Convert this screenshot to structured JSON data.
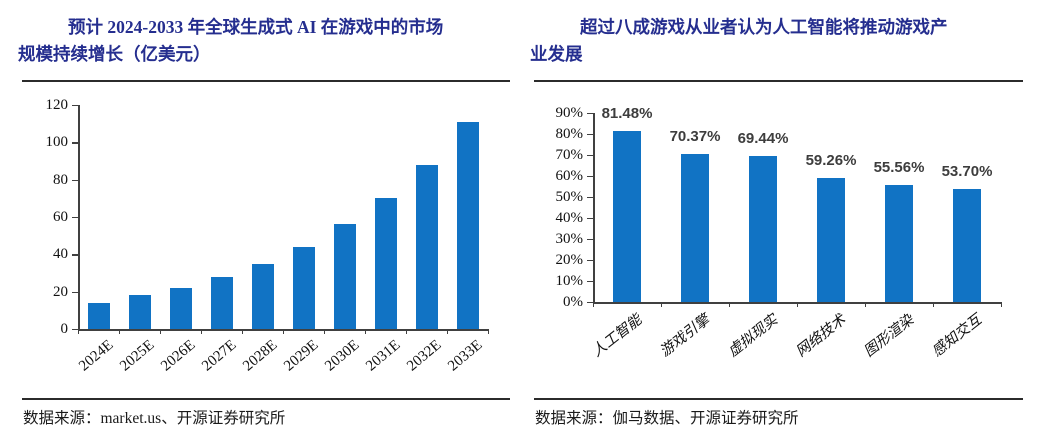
{
  "figures": [
    {
      "title_lines": [
        "预计 2024-2033 年全球生成式 AI 在游戏中的市场",
        "规模持续增长（亿美元）"
      ],
      "source": "数据来源：market.us、开源证券研究所"
    },
    {
      "title_lines": [
        "超过八成游戏从业者认为人工智能将推动游戏产",
        "业发展"
      ],
      "source": "数据来源：伽马数据、开源证券研究所"
    }
  ],
  "chart_data": [
    {
      "type": "bar",
      "title": "预计 2024-2033 年全球生成式 AI 在游戏中的市场规模持续增长（亿美元）",
      "categories": [
        "2024E",
        "2025E",
        "2026E",
        "2027E",
        "2028E",
        "2029E",
        "2030E",
        "2031E",
        "2032E",
        "2033E"
      ],
      "values": [
        14,
        18,
        22,
        28,
        35,
        44,
        56,
        70,
        88,
        111
      ],
      "xlabel": "",
      "ylabel": "",
      "ylim": [
        0,
        120
      ],
      "ytick_step": 20,
      "ytick_suffix": "",
      "grid": false,
      "legend": "none",
      "bar_color": "#1173C4",
      "value_label_format": "none",
      "source": "数据来源：market.us、开源证券研究所"
    },
    {
      "type": "bar",
      "title": "超过八成游戏从业者认为人工智能将推动游戏产业发展",
      "categories": [
        "人工智能",
        "游戏引擎",
        "虚拟现实",
        "网络技术",
        "图形渲染",
        "感知交互"
      ],
      "values": [
        81.48,
        70.37,
        69.44,
        59.26,
        55.56,
        53.7
      ],
      "value_labels_text": [
        "81.48%",
        "70.37%",
        "69.44%",
        "59.26%",
        "55.56%",
        "53.70%"
      ],
      "xlabel": "",
      "ylabel": "",
      "ylim": [
        0,
        90
      ],
      "ytick_step": 10,
      "ytick_suffix": "%",
      "grid": false,
      "legend": "none",
      "bar_color": "#1173C4",
      "value_label_format": "percent2",
      "source": "数据来源：伽马数据、开源证券研究所"
    }
  ]
}
